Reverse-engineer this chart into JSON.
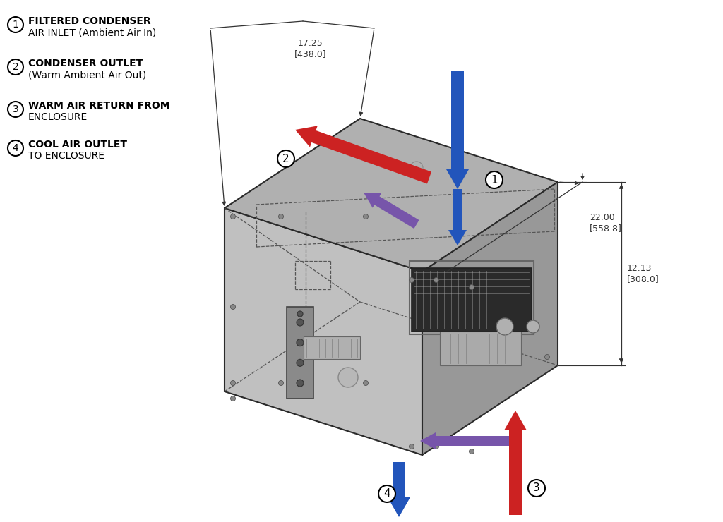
{
  "bg_color": "#ffffff",
  "legend_items": [
    {
      "num": "1",
      "text1": "FILTERED CONDENSER",
      "text2": "AIR INLET (Ambient Air In)"
    },
    {
      "num": "2",
      "text1": "CONDENSER OUTLET",
      "text2": "(Warm Ambient Air Out)"
    },
    {
      "num": "3",
      "text1": "WARM AIR RETURN FROM",
      "text2": "ENCLOSURE"
    },
    {
      "num": "4",
      "text1": "COOL AIR OUTLET",
      "text2": "TO ENCLOSURE"
    }
  ],
  "dim_width_label": "17.25\n[438.0]",
  "dim_depth_label": "22.00\n[558.8]",
  "dim_height_label": "12.13\n[308.0]",
  "arrow_blue": "#2255bb",
  "arrow_red": "#cc2222",
  "arrow_purple": "#7755aa",
  "box_front_color": "#c0c0c0",
  "box_top_color": "#b0b0b0",
  "box_right_color": "#989898",
  "edge_color": "#2a2a2a",
  "dash_color": "#555555",
  "dim_color": "#333333",
  "screw_color": "#888888"
}
